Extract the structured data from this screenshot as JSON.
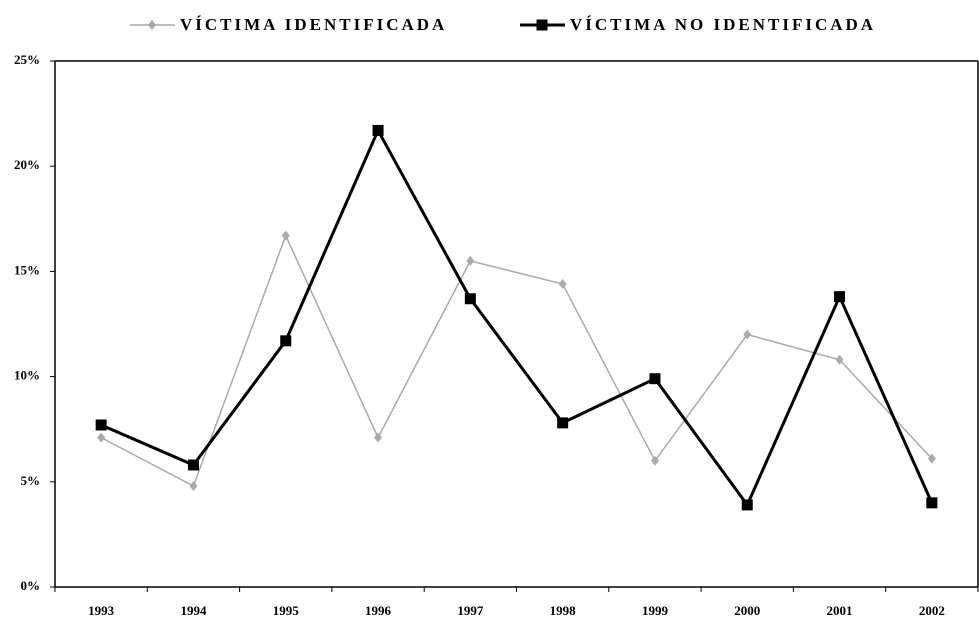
{
  "chart_data": {
    "type": "line",
    "categories": [
      "1993",
      "1994",
      "1995",
      "1996",
      "1997",
      "1998",
      "1999",
      "2000",
      "2001",
      "2002"
    ],
    "series": [
      {
        "name": "VÍCTIMA IDENTIFICADA",
        "color": "#aaaaaa",
        "marker": "diamond",
        "values": [
          7.1,
          4.8,
          16.7,
          7.1,
          15.5,
          14.4,
          6.0,
          12.0,
          10.8,
          6.1
        ]
      },
      {
        "name": "VÍCTIMA NO IDENTIFICADA",
        "color": "#000000",
        "marker": "square",
        "values": [
          7.7,
          5.8,
          11.7,
          21.7,
          13.7,
          7.8,
          9.9,
          3.9,
          13.8,
          4.0
        ]
      }
    ],
    "ylim": [
      0,
      25
    ],
    "yticks": [
      {
        "value": 0,
        "label": "0%"
      },
      {
        "value": 5,
        "label": "5%"
      },
      {
        "value": 10,
        "label": "10%"
      },
      {
        "value": 15,
        "label": "15%"
      },
      {
        "value": 20,
        "label": "20%"
      },
      {
        "value": 25,
        "label": "25%"
      }
    ],
    "grid": false,
    "legend": "top"
  }
}
